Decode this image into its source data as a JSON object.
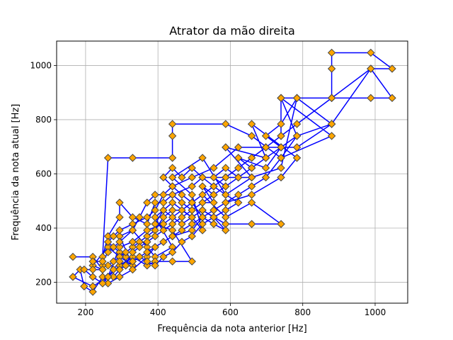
{
  "chart_data": {
    "type": "line",
    "title": "Atrator da mão direita",
    "xlabel": "Frequência da nota anterior [Hz]",
    "ylabel": "Frequência da nota atual [Hz]",
    "xlim": [
      120,
      1090
    ],
    "ylim": [
      123,
      1090
    ],
    "xticks": [
      200,
      400,
      600,
      800,
      1000
    ],
    "yticks": [
      200,
      400,
      600,
      800,
      1000
    ],
    "xtick_labels": [
      "200",
      "400",
      "600",
      "800",
      "1000"
    ],
    "ytick_labels": [
      "200",
      "400",
      "600",
      "800",
      "1000"
    ],
    "grid": true,
    "line_color": "#0000ff",
    "marker": "diamond",
    "marker_face": "#ffa500",
    "marker_edge": "#444444",
    "series": [
      {
        "points": [
          [
            165,
            294
          ],
          [
            220,
            294
          ],
          [
            247,
            247
          ],
          [
            220,
            262
          ],
          [
            262,
            330
          ],
          [
            294,
            294
          ],
          [
            330,
            262
          ],
          [
            294,
            370
          ],
          [
            330,
            392
          ],
          [
            370,
            330
          ],
          [
            392,
            294
          ],
          [
            440,
            330
          ],
          [
            392,
            440
          ],
          [
            440,
            494
          ],
          [
            494,
            440
          ],
          [
            523,
            392
          ],
          [
            494,
            523
          ],
          [
            440,
            587
          ],
          [
            523,
            659
          ],
          [
            587,
            523
          ],
          [
            659,
            587
          ],
          [
            587,
            698
          ],
          [
            698,
            659
          ],
          [
            659,
            784
          ],
          [
            784,
            659
          ],
          [
            740,
            587
          ],
          [
            659,
            523
          ],
          [
            587,
            494
          ],
          [
            523,
            440
          ],
          [
            494,
            392
          ],
          [
            440,
            370
          ],
          [
            392,
            330
          ],
          [
            370,
            294
          ],
          [
            330,
            247
          ],
          [
            294,
            220
          ],
          [
            262,
            196
          ],
          [
            247,
            220
          ],
          [
            220,
            165
          ],
          [
            196,
            185
          ],
          [
            185,
            247
          ],
          [
            165,
            220
          ],
          [
            220,
            185
          ],
          [
            262,
            220
          ],
          [
            294,
            262
          ],
          [
            330,
            294
          ],
          [
            370,
            262
          ],
          [
            392,
            277
          ],
          [
            440,
            277
          ],
          [
            494,
            277
          ],
          [
            440,
            392
          ],
          [
            392,
            415
          ],
          [
            415,
            466
          ],
          [
            466,
            415
          ],
          [
            523,
            466
          ],
          [
            587,
            415
          ],
          [
            659,
            415
          ],
          [
            740,
            415
          ],
          [
            659,
            494
          ],
          [
            587,
            440
          ],
          [
            523,
            523
          ],
          [
            587,
            587
          ],
          [
            659,
            659
          ],
          [
            740,
            740
          ],
          [
            784,
            784
          ],
          [
            880,
            880
          ],
          [
            988,
            988
          ],
          [
            1047,
            988
          ],
          [
            988,
            1047
          ],
          [
            880,
            1047
          ],
          [
            880,
            988
          ],
          [
            880,
            880
          ],
          [
            988,
            880
          ],
          [
            1047,
            880
          ],
          [
            988,
            988
          ],
          [
            880,
            784
          ],
          [
            784,
            740
          ],
          [
            740,
            880
          ],
          [
            880,
            740
          ],
          [
            740,
            659
          ],
          [
            659,
            740
          ],
          [
            587,
            784
          ],
          [
            440,
            784
          ],
          [
            440,
            740
          ],
          [
            440,
            659
          ],
          [
            330,
            659
          ],
          [
            262,
            659
          ],
          [
            247,
            294
          ],
          [
            262,
            370
          ],
          [
            294,
            440
          ],
          [
            294,
            494
          ],
          [
            330,
            440
          ],
          [
            370,
            415
          ],
          [
            392,
            494
          ],
          [
            415,
            494
          ],
          [
            440,
            523
          ],
          [
            466,
            494
          ],
          [
            494,
            466
          ],
          [
            523,
            494
          ],
          [
            554,
            494
          ],
          [
            523,
            554
          ],
          [
            554,
            523
          ],
          [
            587,
            554
          ],
          [
            554,
            587
          ],
          [
            587,
            622
          ],
          [
            622,
            587
          ],
          [
            659,
            622
          ],
          [
            622,
            659
          ],
          [
            698,
            622
          ],
          [
            740,
            698
          ],
          [
            698,
            740
          ],
          [
            740,
            784
          ],
          [
            784,
            880
          ],
          [
            880,
            784
          ],
          [
            784,
            698
          ],
          [
            698,
            698
          ],
          [
            622,
            698
          ],
          [
            554,
            622
          ],
          [
            494,
            587
          ],
          [
            440,
            554
          ],
          [
            415,
            523
          ],
          [
            392,
            466
          ],
          [
            370,
            440
          ],
          [
            330,
            415
          ],
          [
            294,
            392
          ],
          [
            277,
            370
          ],
          [
            262,
            349
          ],
          [
            277,
            330
          ],
          [
            294,
            311
          ],
          [
            311,
            294
          ],
          [
            330,
            277
          ],
          [
            349,
            294
          ],
          [
            370,
            277
          ],
          [
            392,
            262
          ],
          [
            415,
            294
          ],
          [
            440,
            311
          ],
          [
            466,
            349
          ],
          [
            494,
            370
          ],
          [
            523,
            415
          ],
          [
            554,
            440
          ],
          [
            587,
            466
          ],
          [
            622,
            494
          ],
          [
            587,
            523
          ],
          [
            554,
            554
          ],
          [
            523,
            587
          ],
          [
            494,
            622
          ],
          [
            466,
            587
          ],
          [
            440,
            622
          ],
          [
            415,
            587
          ],
          [
            440,
            554
          ],
          [
            466,
            523
          ],
          [
            494,
            494
          ],
          [
            523,
            440
          ],
          [
            554,
            415
          ],
          [
            587,
            392
          ],
          [
            554,
            440
          ],
          [
            523,
            466
          ],
          [
            494,
            440
          ],
          [
            466,
            466
          ],
          [
            440,
            466
          ],
          [
            415,
            440
          ],
          [
            392,
            392
          ],
          [
            370,
            370
          ],
          [
            349,
            349
          ],
          [
            330,
            330
          ],
          [
            311,
            311
          ],
          [
            294,
            294
          ],
          [
            277,
            277
          ],
          [
            262,
            262
          ],
          [
            247,
            262
          ],
          [
            247,
            247
          ],
          [
            220,
            247
          ],
          [
            196,
            247
          ],
          [
            220,
            220
          ],
          [
            247,
            196
          ],
          [
            262,
            220
          ],
          [
            277,
            247
          ],
          [
            294,
            277
          ],
          [
            311,
            262
          ],
          [
            330,
            311
          ],
          [
            349,
            330
          ],
          [
            370,
            349
          ],
          [
            392,
            370
          ],
          [
            415,
            392
          ],
          [
            440,
            415
          ],
          [
            466,
            440
          ],
          [
            494,
            466
          ],
          [
            523,
            494
          ],
          [
            554,
            523
          ],
          [
            587,
            554
          ],
          [
            622,
            587
          ],
          [
            659,
            622
          ],
          [
            698,
            659
          ],
          [
            740,
            698
          ],
          [
            784,
            740
          ],
          [
            740,
            659
          ],
          [
            698,
            587
          ],
          [
            659,
            554
          ],
          [
            622,
            523
          ],
          [
            587,
            494
          ],
          [
            554,
            466
          ],
          [
            523,
            440
          ],
          [
            494,
            415
          ],
          [
            466,
            392
          ],
          [
            440,
            370
          ],
          [
            415,
            349
          ],
          [
            392,
            330
          ],
          [
            370,
            311
          ],
          [
            349,
            294
          ],
          [
            330,
            277
          ],
          [
            311,
            262
          ],
          [
            294,
            247
          ],
          [
            277,
            220
          ],
          [
            262,
            220
          ],
          [
            294,
            330
          ],
          [
            330,
            349
          ],
          [
            370,
            392
          ],
          [
            415,
            415
          ],
          [
            440,
            440
          ],
          [
            494,
            494
          ],
          [
            554,
            554
          ],
          [
            622,
            622
          ],
          [
            698,
            698
          ],
          [
            740,
            740
          ],
          [
            740,
            880
          ],
          [
            880,
            880
          ],
          [
            784,
            880
          ],
          [
            740,
            622
          ],
          [
            659,
            587
          ],
          [
            587,
            587
          ],
          [
            523,
            587
          ],
          [
            494,
            554
          ],
          [
            440,
            523
          ],
          [
            392,
            523
          ],
          [
            370,
            494
          ],
          [
            349,
            440
          ],
          [
            330,
            392
          ],
          [
            294,
            349
          ],
          [
            262,
            311
          ],
          [
            247,
            277
          ],
          [
            220,
            277
          ]
        ]
      }
    ]
  }
}
